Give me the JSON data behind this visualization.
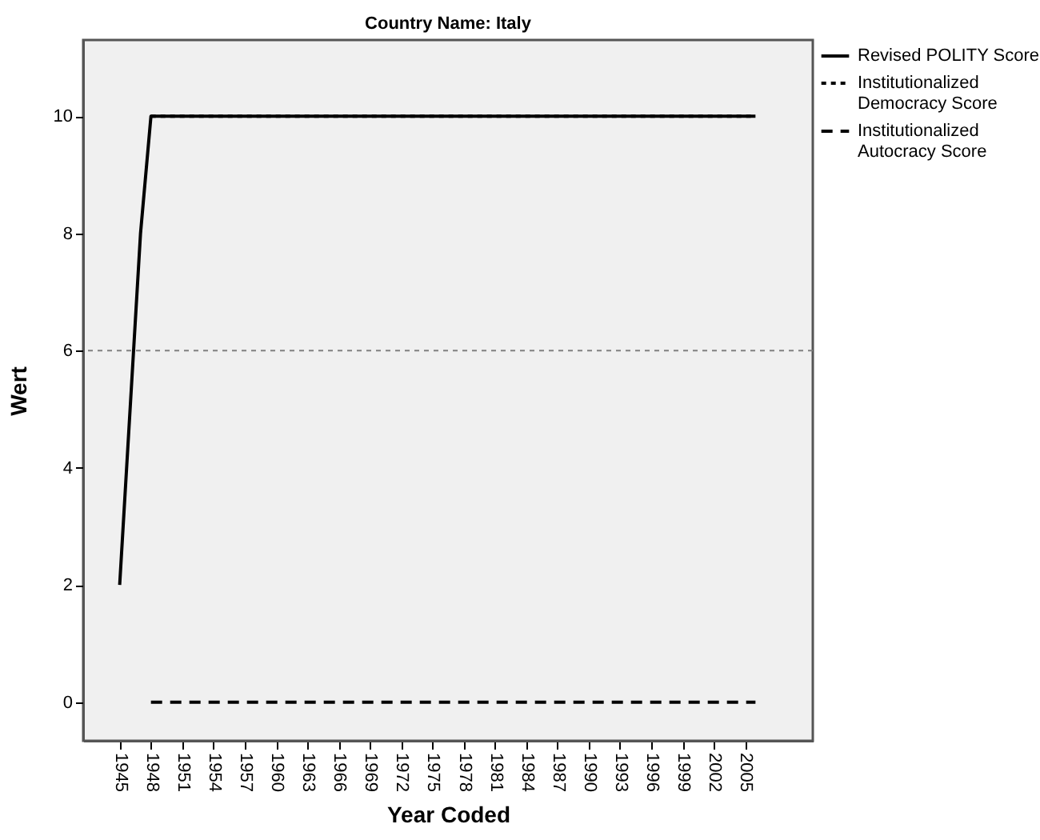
{
  "chart_data": {
    "type": "line",
    "title": "Country Name: Italy",
    "xlabel": "Year Coded",
    "ylabel": "Wert",
    "series": [
      {
        "name": "Revised POLITY Score",
        "color": "#000000",
        "line_style": "solid",
        "x": [
          1945,
          1947,
          1948,
          1949,
          1950,
          1951,
          1952,
          1953,
          1954,
          1955,
          1956,
          1957,
          1958,
          1959,
          1960,
          1961,
          1962,
          1963,
          1964,
          1965,
          1966,
          1967,
          1968,
          1969,
          1970,
          1971,
          1972,
          1973,
          1974,
          1975,
          1976,
          1977,
          1978,
          1979,
          1980,
          1981,
          1982,
          1983,
          1984,
          1985,
          1986,
          1987,
          1988,
          1989,
          1990,
          1991,
          1992,
          1993,
          1994,
          1995,
          1996,
          1997,
          1998,
          1999,
          2000,
          2001,
          2002,
          2003,
          2004,
          2005,
          2006
        ],
        "values": [
          2,
          8,
          10,
          10,
          10,
          10,
          10,
          10,
          10,
          10,
          10,
          10,
          10,
          10,
          10,
          10,
          10,
          10,
          10,
          10,
          10,
          10,
          10,
          10,
          10,
          10,
          10,
          10,
          10,
          10,
          10,
          10,
          10,
          10,
          10,
          10,
          10,
          10,
          10,
          10,
          10,
          10,
          10,
          10,
          10,
          10,
          10,
          10,
          10,
          10,
          10,
          10,
          10,
          10,
          10,
          10,
          10,
          10,
          10,
          10,
          10
        ]
      },
      {
        "name": "Institutionalized Democracy Score",
        "color": "#000000",
        "line_style": "dotted",
        "x": [
          1948,
          1949,
          1950,
          1951,
          1952,
          1953,
          1954,
          1955,
          1956,
          1957,
          1958,
          1959,
          1960,
          1961,
          1962,
          1963,
          1964,
          1965,
          1966,
          1967,
          1968,
          1969,
          1970,
          1971,
          1972,
          1973,
          1974,
          1975,
          1976,
          1977,
          1978,
          1979,
          1980,
          1981,
          1982,
          1983,
          1984,
          1985,
          1986,
          1987,
          1988,
          1989,
          1990,
          1991,
          1992,
          1993,
          1994,
          1995,
          1996,
          1997,
          1998,
          1999,
          2000,
          2001,
          2002,
          2003,
          2004,
          2005,
          2006
        ],
        "values": [
          10,
          10,
          10,
          10,
          10,
          10,
          10,
          10,
          10,
          10,
          10,
          10,
          10,
          10,
          10,
          10,
          10,
          10,
          10,
          10,
          10,
          10,
          10,
          10,
          10,
          10,
          10,
          10,
          10,
          10,
          10,
          10,
          10,
          10,
          10,
          10,
          10,
          10,
          10,
          10,
          10,
          10,
          10,
          10,
          10,
          10,
          10,
          10,
          10,
          10,
          10,
          10,
          10,
          10,
          10,
          10,
          10,
          10,
          10
        ]
      },
      {
        "name": "Institutionalized Autocracy Score",
        "color": "#000000",
        "line_style": "dashed",
        "x": [
          1948,
          1949,
          1950,
          1951,
          1952,
          1953,
          1954,
          1955,
          1956,
          1957,
          1958,
          1959,
          1960,
          1961,
          1962,
          1963,
          1964,
          1965,
          1966,
          1967,
          1968,
          1969,
          1970,
          1971,
          1972,
          1973,
          1974,
          1975,
          1976,
          1977,
          1978,
          1979,
          1980,
          1981,
          1982,
          1983,
          1984,
          1985,
          1986,
          1987,
          1988,
          1989,
          1990,
          1991,
          1992,
          1993,
          1994,
          1995,
          1996,
          1997,
          1998,
          1999,
          2000,
          2001,
          2002,
          2003,
          2004,
          2005,
          2006
        ],
        "values": [
          0,
          0,
          0,
          0,
          0,
          0,
          0,
          0,
          0,
          0,
          0,
          0,
          0,
          0,
          0,
          0,
          0,
          0,
          0,
          0,
          0,
          0,
          0,
          0,
          0,
          0,
          0,
          0,
          0,
          0,
          0,
          0,
          0,
          0,
          0,
          0,
          0,
          0,
          0,
          0,
          0,
          0,
          0,
          0,
          0,
          0,
          0,
          0,
          0,
          0,
          0,
          0,
          0,
          0,
          0,
          0,
          0,
          0,
          0
        ]
      }
    ],
    "xlim": [
      1941.5,
      2011.5
    ],
    "xticks": [
      1945,
      1948,
      1951,
      1954,
      1957,
      1960,
      1963,
      1966,
      1969,
      1972,
      1975,
      1978,
      1981,
      1984,
      1987,
      1990,
      1993,
      1996,
      1999,
      2002,
      2005
    ],
    "ylim": [
      -0.66,
      11.3
    ],
    "yticks": [
      0,
      2,
      4,
      6,
      8,
      10
    ],
    "ref_lines": [
      {
        "axis": "y",
        "value": 6,
        "color": "#808080",
        "line_style": "dotted"
      }
    ],
    "grid": false,
    "legend": "top right",
    "marker": "none"
  }
}
